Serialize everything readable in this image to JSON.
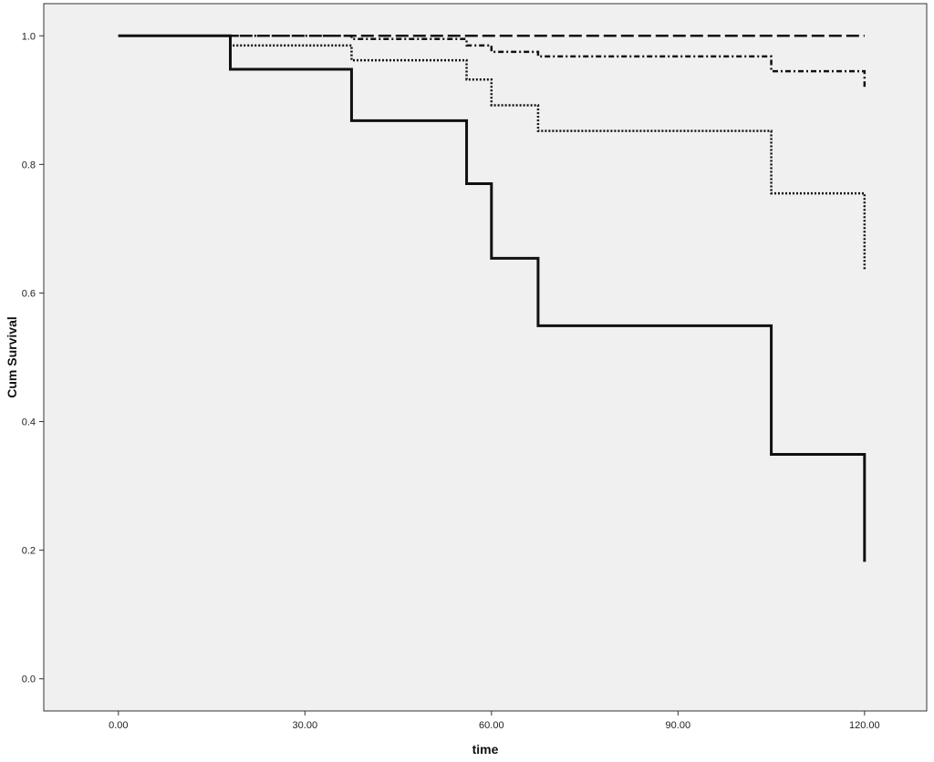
{
  "chart_data": {
    "type": "line",
    "step": true,
    "xlabel": "time",
    "ylabel": "Cum Survival",
    "xlim": [
      -12,
      130
    ],
    "ylim": [
      -0.05,
      1.05
    ],
    "xticks": [
      0,
      30,
      60,
      90,
      120
    ],
    "xtick_labels": [
      "0.00",
      "30.00",
      "60.00",
      "90.00",
      "120.00"
    ],
    "yticks": [
      0.0,
      0.2,
      0.4,
      0.6,
      0.8,
      1.0
    ],
    "ytick_labels": [
      "0.0",
      "0.2",
      "0.4",
      "0.6",
      "0.8",
      "1.0"
    ],
    "grid": false,
    "plot_background": "#f0f0f0",
    "line_color": "#111111",
    "series": [
      {
        "style": "dashed",
        "x": [
          0,
          120
        ],
        "y": [
          1.0,
          1.0
        ]
      },
      {
        "style": "dash-dot",
        "x": [
          0,
          37.5,
          56,
          60,
          67.5,
          105,
          120,
          120
        ],
        "y": [
          1.0,
          0.995,
          0.985,
          0.975,
          0.968,
          0.945,
          0.935,
          0.92
        ]
      },
      {
        "style": "dotted",
        "x": [
          0,
          18,
          37.5,
          56,
          60,
          67.5,
          105,
          120,
          120
        ],
        "y": [
          1.0,
          0.985,
          0.962,
          0.932,
          0.892,
          0.852,
          0.755,
          0.705,
          0.635
        ]
      },
      {
        "style": "solid",
        "x": [
          0,
          18,
          37.5,
          56,
          60,
          67.5,
          105,
          120,
          120
        ],
        "y": [
          1.0,
          0.948,
          0.868,
          0.77,
          0.654,
          0.549,
          0.349,
          0.28,
          0.182
        ]
      }
    ]
  }
}
